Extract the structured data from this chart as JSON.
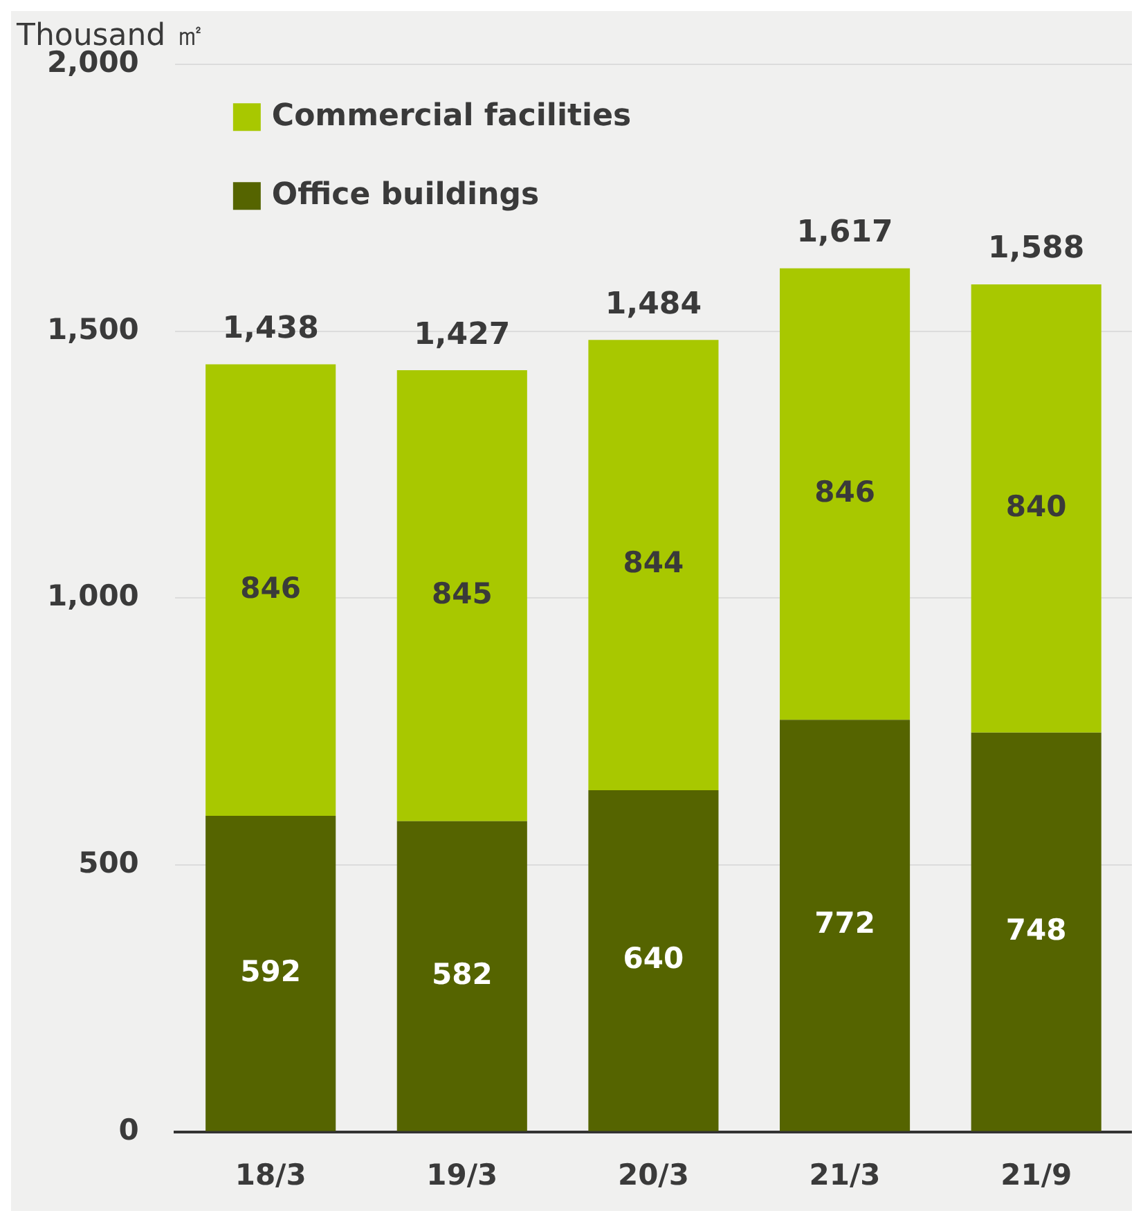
{
  "chart_data": {
    "type": "bar",
    "stacked": true,
    "ylabel": "Thousand ㎡",
    "categories": [
      "18/3",
      "19/3",
      "20/3",
      "21/3",
      "21/9"
    ],
    "series": [
      {
        "name": "Office buildings",
        "color": "#556400",
        "values": [
          592,
          582,
          640,
          772,
          748
        ]
      },
      {
        "name": "Commercial facilities",
        "color": "#a8c800",
        "values": [
          846,
          845,
          844,
          846,
          840
        ]
      }
    ],
    "totals": [
      "1,438",
      "1,427",
      "1,484",
      "1,617",
      "1,588"
    ],
    "data_labels": true,
    "ylim": [
      0,
      2000
    ],
    "yticks": [
      {
        "value": 0,
        "label": "0"
      },
      {
        "value": 500,
        "label": "500"
      },
      {
        "value": 1000,
        "label": "1,000"
      },
      {
        "value": 1500,
        "label": "1,500"
      },
      {
        "value": 2000,
        "label": "2,000"
      }
    ],
    "grid": "y",
    "legend": "top left"
  }
}
